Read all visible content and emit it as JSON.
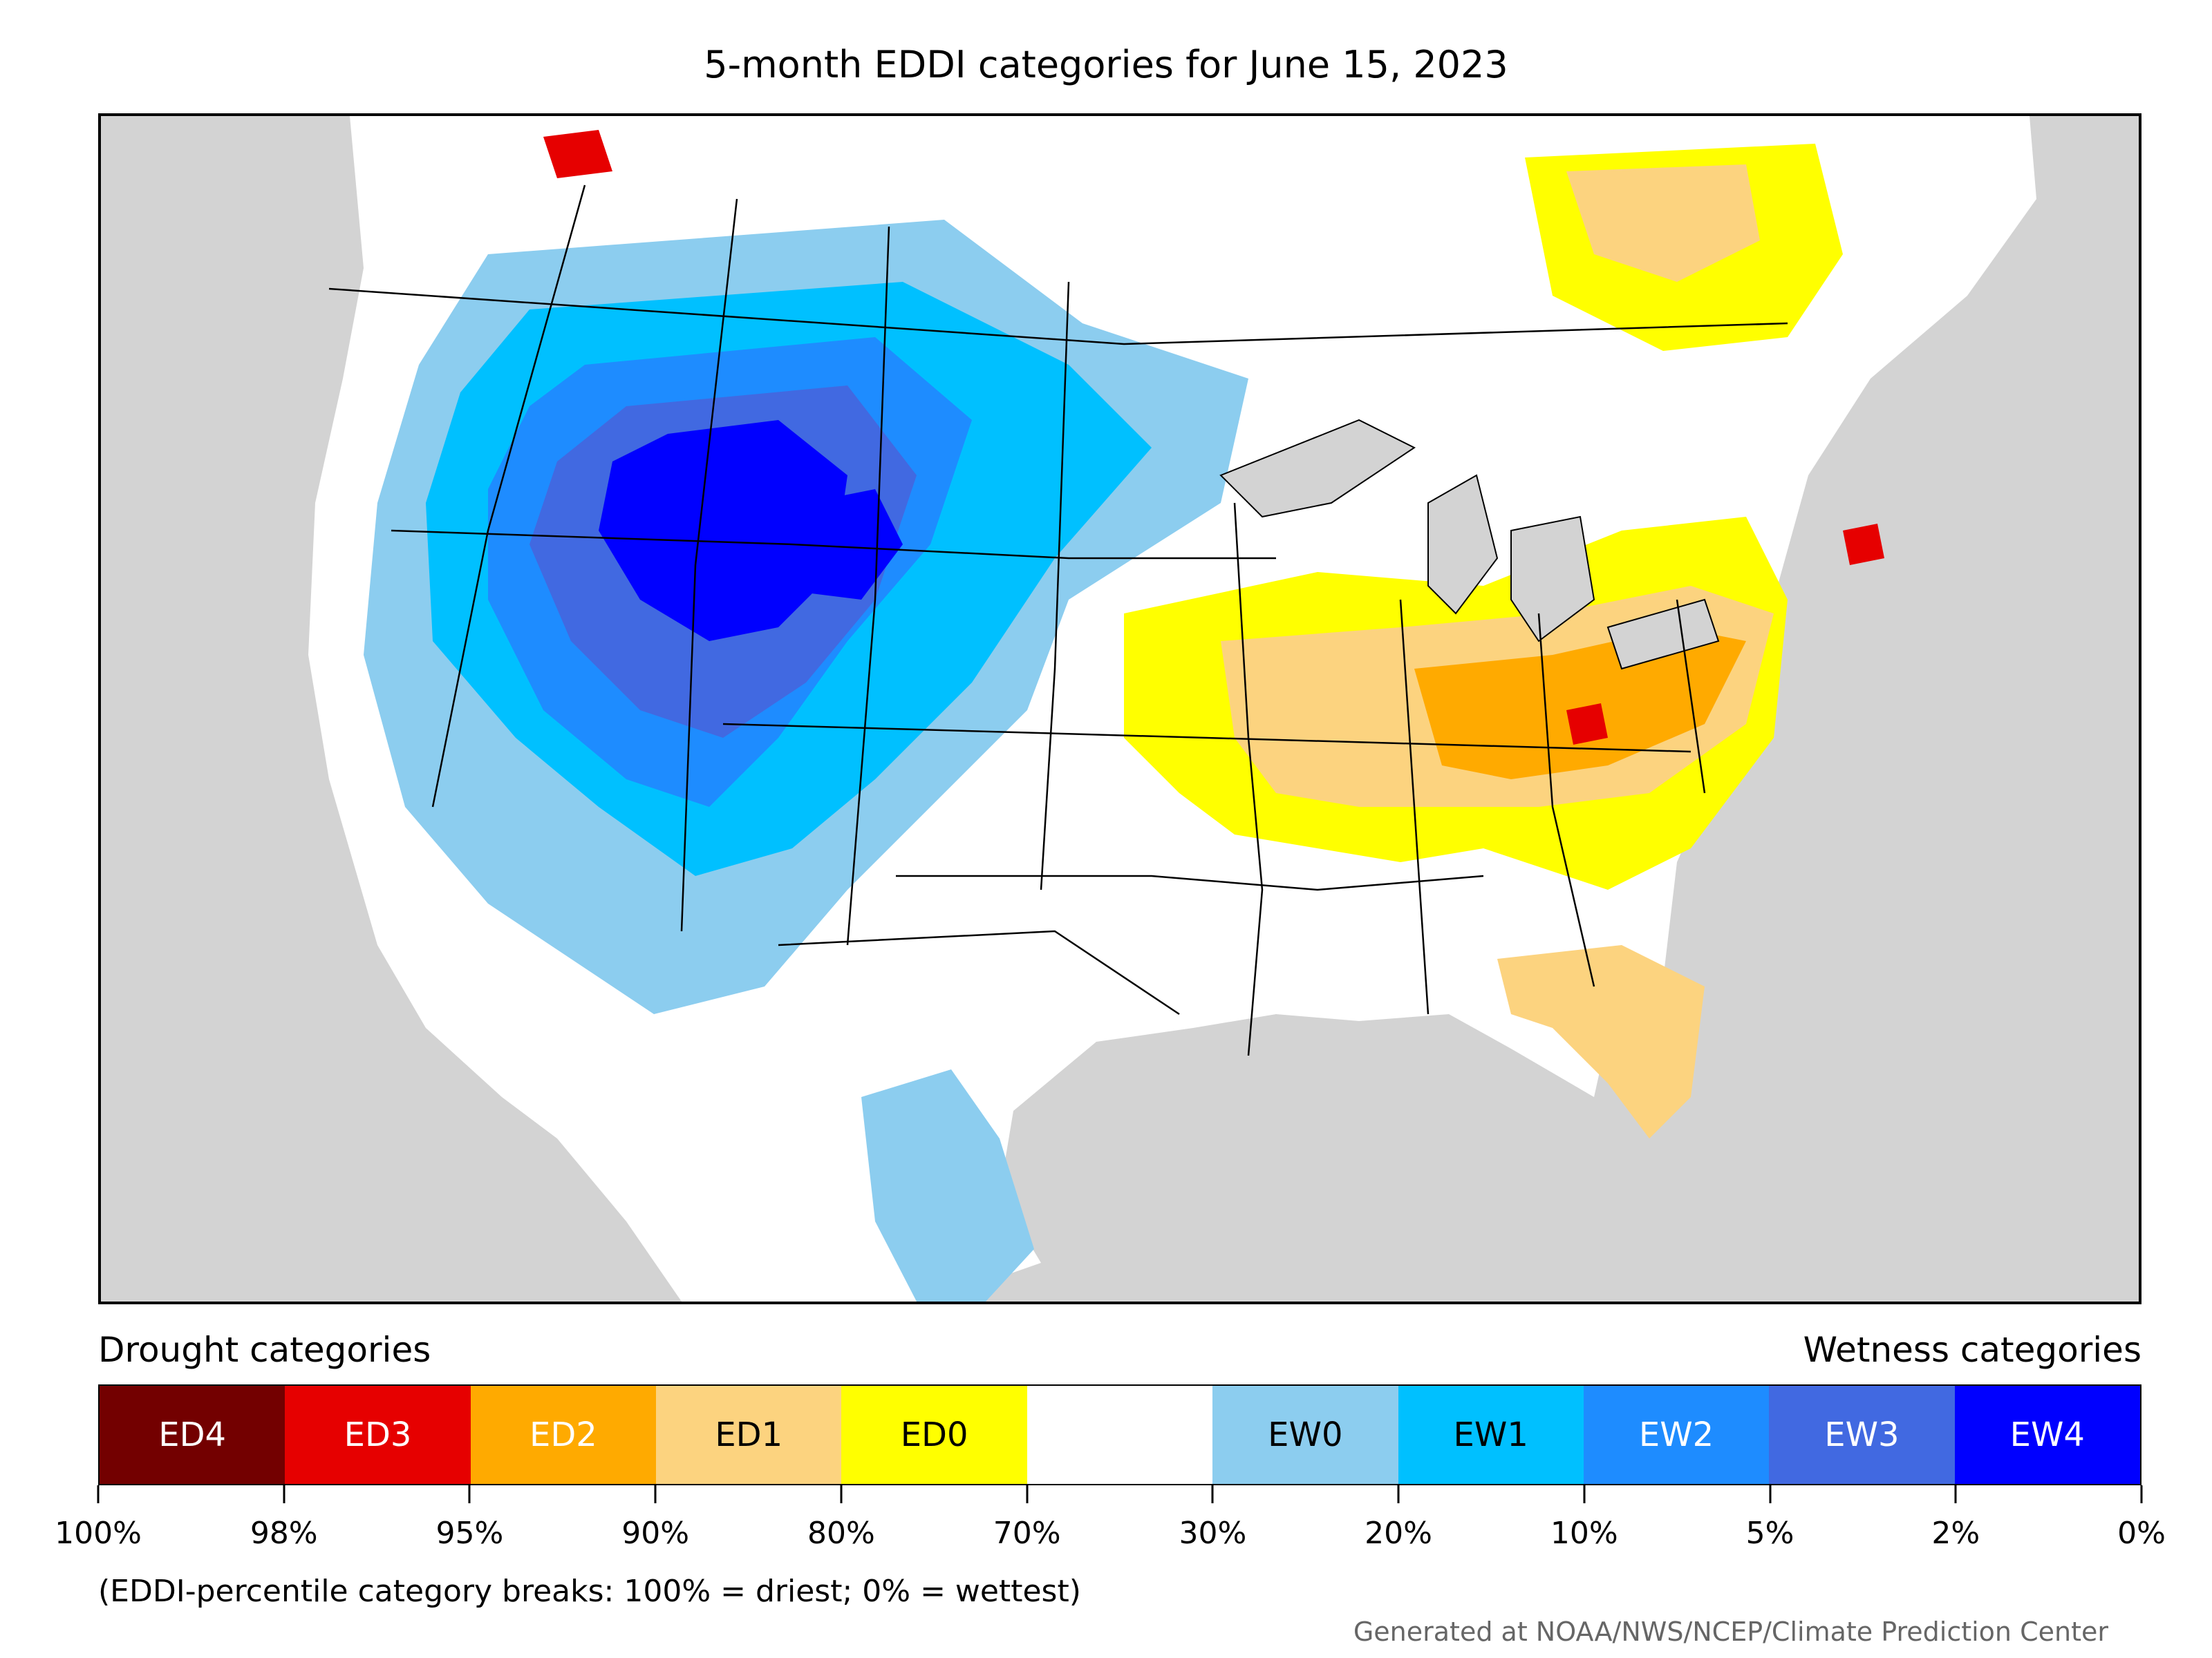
{
  "title": "5-month EDDI categories for June 15, 2023",
  "legend": {
    "drought_heading": "Drought categories",
    "wetness_heading": "Wetness categories",
    "categories": [
      {
        "label": "ED4",
        "color": "#730000",
        "text_color": "#ffffff"
      },
      {
        "label": "ED3",
        "color": "#e60000",
        "text_color": "#ffffff"
      },
      {
        "label": "ED2",
        "color": "#ffaa00",
        "text_color": "#ffffff"
      },
      {
        "label": "ED1",
        "color": "#fcd37f",
        "text_color": "#000000"
      },
      {
        "label": "ED0",
        "color": "#ffff00",
        "text_color": "#000000"
      },
      {
        "label": "",
        "color": "#ffffff",
        "text_color": "#000000"
      },
      {
        "label": "EW0",
        "color": "#8ccdef",
        "text_color": "#000000"
      },
      {
        "label": "EW1",
        "color": "#00c0ff",
        "text_color": "#000000"
      },
      {
        "label": "EW2",
        "color": "#1e8cff",
        "text_color": "#ffffff"
      },
      {
        "label": "EW3",
        "color": "#4169e1",
        "text_color": "#ffffff"
      },
      {
        "label": "EW4",
        "color": "#0000ff",
        "text_color": "#ffffff"
      }
    ],
    "breaks": [
      "100%",
      "98%",
      "95%",
      "90%",
      "80%",
      "70%",
      "30%",
      "20%",
      "10%",
      "5%",
      "2%",
      "0%"
    ]
  },
  "note": "(EDDI-percentile category breaks: 100% = driest; 0% = wettest)",
  "credit": "Generated at NOAA/NWS/NCEP/Climate Prediction Center",
  "colors": {
    "background_land_outside": "#d3d3d3",
    "border": "#000000"
  }
}
